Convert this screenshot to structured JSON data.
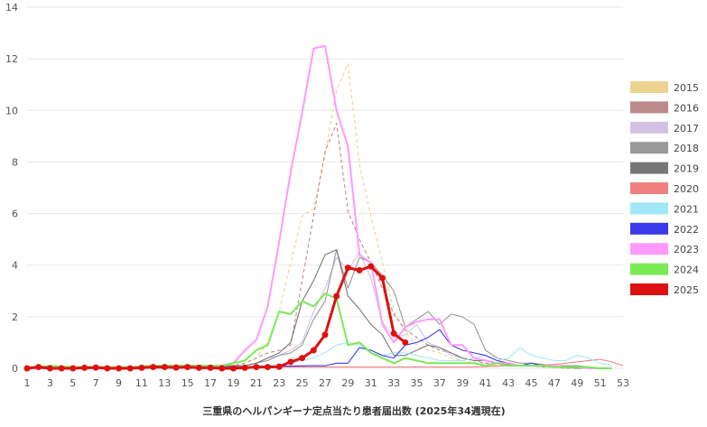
{
  "chart_data": {
    "type": "line",
    "xlabel": "三重県のヘルパンギーナ定点当たり患者届出数 (2025年34週現在)",
    "ylabel": "",
    "ylim": [
      0,
      14
    ],
    "yticks": [
      0,
      2,
      4,
      6,
      8,
      10,
      12,
      14
    ],
    "xlim": [
      1,
      53
    ],
    "xticks": [
      1,
      3,
      5,
      7,
      9,
      11,
      13,
      15,
      17,
      19,
      21,
      23,
      25,
      27,
      29,
      31,
      33,
      35,
      37,
      39,
      41,
      43,
      45,
      47,
      49,
      51,
      53
    ],
    "grid": "horizontal",
    "legend_position": "right",
    "series": [
      {
        "name": "2015",
        "color": "#eed38f",
        "style": "dashed",
        "x": [
          1,
          18,
          19,
          20,
          21,
          22,
          23,
          24,
          25,
          26,
          27,
          28,
          29,
          30,
          31,
          32,
          33,
          34,
          35,
          36,
          37,
          38,
          39,
          40,
          41,
          42,
          43,
          44,
          45,
          46,
          47,
          48,
          49,
          50,
          51,
          52
        ],
        "values": [
          0,
          0.1,
          0.1,
          0.2,
          0.4,
          1.0,
          2.2,
          4.1,
          5.9,
          6.2,
          8.3,
          10.8,
          11.8,
          7.9,
          5.9,
          4.1,
          2.2,
          1.4,
          0.9,
          0.7,
          0.6,
          0.4,
          0.3,
          0.2,
          0.2,
          0.1,
          0.1,
          0.1,
          0.1,
          0.05,
          0.05,
          0,
          0,
          0,
          0,
          0
        ]
      },
      {
        "name": "2016",
        "color": "#bc8a8a",
        "style": "dashed",
        "x": [
          1,
          19,
          20,
          21,
          22,
          23,
          24,
          25,
          26,
          27,
          28,
          29,
          30,
          31,
          32,
          33,
          34,
          35,
          36,
          37,
          38,
          39,
          40,
          41,
          42,
          43,
          44,
          45,
          46,
          47,
          48,
          49,
          50,
          51,
          52
        ],
        "values": [
          0,
          0.1,
          0.2,
          0.4,
          0.6,
          0.7,
          0.9,
          3.4,
          5.9,
          8.4,
          9.5,
          6.1,
          5.0,
          4.1,
          3.1,
          2.1,
          1.5,
          1.2,
          0.9,
          0.7,
          0.6,
          0.4,
          0.3,
          0.2,
          0.2,
          0.1,
          0.1,
          0.1,
          0.05,
          0.05,
          0,
          0,
          0,
          0,
          0
        ]
      },
      {
        "name": "2017",
        "color": "#d3c2e6",
        "style": "solid",
        "x": [
          1,
          20,
          21,
          22,
          23,
          24,
          25,
          26,
          27,
          28,
          29,
          30,
          31,
          32,
          33,
          34,
          35,
          36,
          37,
          38,
          39,
          40,
          41,
          42,
          43,
          44,
          45,
          46,
          47,
          48,
          49,
          50,
          51,
          52
        ],
        "values": [
          0,
          0.1,
          0.2,
          0.4,
          0.5,
          0.7,
          1.0,
          2.2,
          3.1,
          4.3,
          3.8,
          4.5,
          3.5,
          1.8,
          1.2,
          1.3,
          1.7,
          1.0,
          0.8,
          0.5,
          0.4,
          0.3,
          0.3,
          0.2,
          0.15,
          0.1,
          0.1,
          0.1,
          0.05,
          0.05,
          0,
          0,
          0,
          0
        ]
      },
      {
        "name": "2018",
        "color": "#999999",
        "style": "solid",
        "x": [
          1,
          20,
          21,
          22,
          23,
          24,
          25,
          26,
          27,
          28,
          29,
          30,
          31,
          32,
          33,
          34,
          35,
          36,
          37,
          38,
          39,
          40,
          41,
          42,
          43,
          44,
          45,
          46,
          47,
          48,
          49,
          50,
          51,
          52
        ],
        "values": [
          0,
          0.1,
          0.2,
          0.3,
          0.5,
          0.6,
          0.9,
          1.9,
          2.6,
          4.6,
          3.1,
          4.3,
          4.1,
          3.6,
          3.0,
          1.6,
          1.9,
          2.2,
          1.7,
          2.1,
          2.0,
          1.7,
          0.7,
          0.4,
          0.3,
          0.2,
          0.2,
          0.15,
          0.1,
          0.1,
          0.1,
          0.05,
          0,
          0
        ]
      },
      {
        "name": "2019",
        "color": "#777777",
        "style": "solid",
        "x": [
          1,
          20,
          21,
          22,
          23,
          24,
          25,
          26,
          27,
          28,
          29,
          30,
          31,
          32,
          33,
          34,
          35,
          36,
          37,
          38,
          39,
          40,
          41,
          42,
          43,
          44,
          45,
          46,
          47,
          48,
          49,
          50,
          51,
          52
        ],
        "values": [
          0,
          0.1,
          0.2,
          0.4,
          0.6,
          1.0,
          2.6,
          3.4,
          4.4,
          4.6,
          2.8,
          2.3,
          1.7,
          1.3,
          0.5,
          0.5,
          0.7,
          0.9,
          0.8,
          0.6,
          0.4,
          0.3,
          0.3,
          0.2,
          0.15,
          0.1,
          0.1,
          0.1,
          0.05,
          0.05,
          0,
          0,
          0,
          0
        ]
      },
      {
        "name": "2020",
        "color": "#f08080",
        "style": "solid",
        "x": [
          1,
          5,
          10,
          15,
          20,
          25,
          30,
          35,
          40,
          43,
          45,
          47,
          49,
          50,
          51,
          52,
          53
        ],
        "values": [
          0,
          0.05,
          0,
          0,
          0.05,
          0.05,
          0.05,
          0.05,
          0.05,
          0.1,
          0.1,
          0.15,
          0.25,
          0.3,
          0.35,
          0.25,
          0.1
        ]
      },
      {
        "name": "2021",
        "color": "#a0e8f8",
        "style": "solid",
        "x": [
          1,
          20,
          24,
          26,
          27,
          28,
          29,
          30,
          31,
          32,
          33,
          34,
          35,
          36,
          37,
          38,
          39,
          40,
          41,
          42,
          43,
          44,
          45,
          46,
          47,
          48,
          49,
          50,
          51,
          52
        ],
        "values": [
          0,
          0.05,
          0.2,
          0.4,
          0.6,
          0.9,
          1.0,
          0.9,
          0.6,
          0.5,
          0.6,
          0.6,
          0.5,
          0.4,
          0.3,
          0.3,
          0.3,
          0.4,
          0.5,
          0.3,
          0.4,
          0.8,
          0.5,
          0.4,
          0.3,
          0.3,
          0.5,
          0.4,
          0.2,
          0.1
        ]
      },
      {
        "name": "2022",
        "color": "#3a3ae8",
        "style": "solid",
        "x": [
          1,
          20,
          26,
          27,
          28,
          29,
          30,
          31,
          32,
          33,
          34,
          35,
          36,
          37,
          38,
          39,
          40,
          41,
          42,
          43,
          44,
          45,
          46,
          47,
          48,
          49,
          50,
          51,
          52
        ],
        "values": [
          0,
          0.05,
          0.1,
          0.1,
          0.2,
          0.2,
          0.8,
          0.7,
          0.5,
          0.4,
          0.9,
          1.0,
          1.2,
          1.5,
          0.9,
          0.7,
          0.6,
          0.5,
          0.3,
          0.2,
          0.1,
          0.2,
          0.1,
          0.1,
          0.05,
          0.05,
          0.05,
          0,
          0
        ]
      },
      {
        "name": "2023",
        "color": "#ff99ff",
        "style": "solid",
        "x": [
          1,
          5,
          10,
          15,
          18,
          19,
          20,
          21,
          22,
          23,
          24,
          25,
          26,
          27,
          28,
          29,
          30,
          31,
          32,
          33,
          34,
          35,
          36,
          37,
          38,
          39,
          40,
          41,
          42,
          43,
          44,
          45,
          46,
          47,
          48,
          49,
          50,
          51,
          52
        ],
        "values": [
          0,
          0,
          0,
          0.1,
          0.1,
          0.2,
          0.7,
          1.1,
          2.4,
          4.9,
          7.6,
          9.9,
          12.4,
          12.5,
          10.0,
          8.6,
          4.4,
          4.1,
          1.7,
          1.0,
          1.6,
          1.8,
          1.9,
          1.9,
          0.9,
          0.9,
          0.4,
          0.3,
          0.2,
          0.2,
          0.1,
          0.1,
          0.1,
          0.1,
          0.05,
          0.05,
          0,
          0,
          0
        ]
      },
      {
        "name": "2024",
        "color": "#7aea55",
        "style": "solid",
        "x": [
          1,
          2,
          3,
          5,
          8,
          10,
          12,
          14,
          16,
          17,
          18,
          19,
          20,
          21,
          22,
          23,
          24,
          25,
          26,
          27,
          28,
          29,
          30,
          31,
          32,
          33,
          34,
          35,
          36,
          37,
          38,
          39,
          40,
          41,
          42,
          43,
          44,
          45,
          46,
          47,
          48,
          49,
          50,
          51,
          52
        ],
        "values": [
          0.05,
          0.05,
          0.1,
          0.05,
          0.05,
          0.05,
          0.1,
          0.1,
          0.1,
          0.1,
          0.1,
          0.2,
          0.3,
          0.7,
          0.9,
          2.2,
          2.1,
          2.6,
          2.4,
          2.9,
          2.7,
          0.9,
          1.0,
          0.6,
          0.4,
          0.2,
          0.4,
          0.3,
          0.2,
          0.2,
          0.2,
          0.2,
          0.2,
          0.1,
          0.2,
          0.1,
          0.1,
          0.1,
          0.1,
          0.05,
          0.05,
          0.05,
          0.05,
          0,
          0
        ]
      },
      {
        "name": "2025",
        "color": "#dd1111",
        "style": "solid",
        "markers": true,
        "x": [
          1,
          2,
          3,
          4,
          5,
          6,
          7,
          8,
          9,
          10,
          11,
          12,
          13,
          14,
          15,
          16,
          17,
          18,
          19,
          20,
          21,
          22,
          23,
          24,
          25,
          26,
          27,
          28,
          29,
          30,
          31,
          32,
          33,
          34
        ],
        "values": [
          0,
          0.05,
          0,
          0,
          0,
          0.02,
          0.03,
          0,
          0,
          0,
          0.02,
          0.05,
          0.05,
          0.03,
          0.05,
          0.02,
          0.02,
          0,
          0,
          0.02,
          0.05,
          0.05,
          0.06,
          0.25,
          0.4,
          0.7,
          1.3,
          2.8,
          3.9,
          3.8,
          3.95,
          3.5,
          1.35,
          1.0
        ]
      }
    ]
  }
}
